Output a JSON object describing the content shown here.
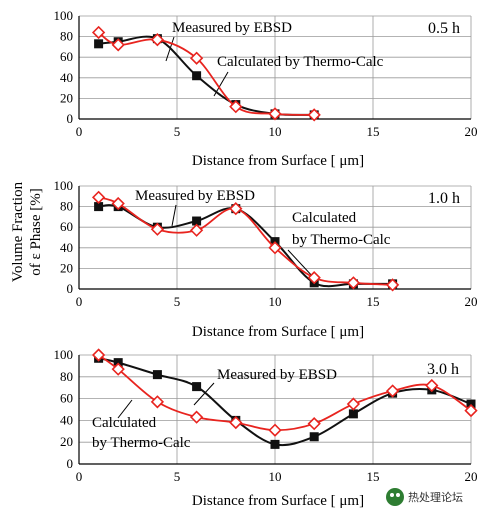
{
  "ylabel_line1": "Volume Fraction",
  "ylabel_line2": "of ε Phase [%]",
  "watermark": "热处理论坛",
  "colors": {
    "ebsd": "#111111",
    "calc": "#e8241f",
    "grid": "#9a9a9a"
  },
  "chart_data": [
    {
      "type": "line",
      "time_label": "0.5 h",
      "xlabel": "Distance from Surface [ μm]",
      "xlim": [
        0,
        20
      ],
      "ylim": [
        0,
        100
      ],
      "xticks": [
        0,
        5,
        10,
        15,
        20
      ],
      "yticks": [
        0,
        20,
        40,
        60,
        80,
        100
      ],
      "annotations": [
        "Measured by EBSD",
        "Calculated by Thermo-Calc"
      ],
      "series": [
        {
          "name": "Measured by EBSD",
          "marker": "square",
          "x": [
            1,
            2,
            4,
            6,
            8,
            10,
            12
          ],
          "y": [
            73,
            75,
            78,
            42,
            14,
            5,
            4
          ]
        },
        {
          "name": "Calculated by Thermo-Calc",
          "marker": "diamond",
          "x": [
            1,
            2,
            4,
            6,
            8,
            10,
            12
          ],
          "y": [
            84,
            72,
            77,
            59,
            12,
            5,
            4
          ]
        }
      ]
    },
    {
      "type": "line",
      "time_label": "1.0 h",
      "xlabel": "Distance from Surface [ μm]",
      "xlim": [
        0,
        20
      ],
      "ylim": [
        0,
        100
      ],
      "xticks": [
        0,
        5,
        10,
        15,
        20
      ],
      "yticks": [
        0,
        20,
        40,
        60,
        80,
        100
      ],
      "annotations": [
        "Measured by EBSD",
        "Calculated",
        "by Thermo-Calc"
      ],
      "series": [
        {
          "name": "Measured by EBSD",
          "marker": "square",
          "x": [
            1,
            2,
            4,
            6,
            8,
            10,
            12,
            14,
            16
          ],
          "y": [
            80,
            80,
            60,
            66,
            78,
            46,
            6,
            5,
            5
          ]
        },
        {
          "name": "Calculated by Thermo-Calc",
          "marker": "diamond",
          "x": [
            1,
            2,
            4,
            6,
            8,
            10,
            12,
            14,
            16
          ],
          "y": [
            89,
            83,
            58,
            57,
            78,
            40,
            11,
            6,
            4
          ]
        }
      ]
    },
    {
      "type": "line",
      "time_label": "3.0 h",
      "xlabel": "Distance from Surface [ μm]",
      "xlim": [
        0,
        20
      ],
      "ylim": [
        0,
        100
      ],
      "xticks": [
        0,
        5,
        10,
        15,
        20
      ],
      "yticks": [
        0,
        20,
        40,
        60,
        80,
        100
      ],
      "annotations": [
        "Measured by EBSD",
        "Calculated",
        "by Thermo-Calc"
      ],
      "series": [
        {
          "name": "Measured by EBSD",
          "marker": "square",
          "x": [
            1,
            2,
            4,
            6,
            8,
            10,
            12,
            14,
            16,
            18,
            20
          ],
          "y": [
            97,
            93,
            82,
            71,
            40,
            18,
            25,
            46,
            65,
            68,
            55
          ]
        },
        {
          "name": "Calculated by Thermo-Calc",
          "marker": "diamond",
          "x": [
            1,
            2,
            4,
            6,
            8,
            10,
            12,
            14,
            16,
            18,
            20
          ],
          "y": [
            100,
            87,
            57,
            43,
            38,
            31,
            37,
            55,
            67,
            72,
            49
          ]
        }
      ]
    }
  ]
}
